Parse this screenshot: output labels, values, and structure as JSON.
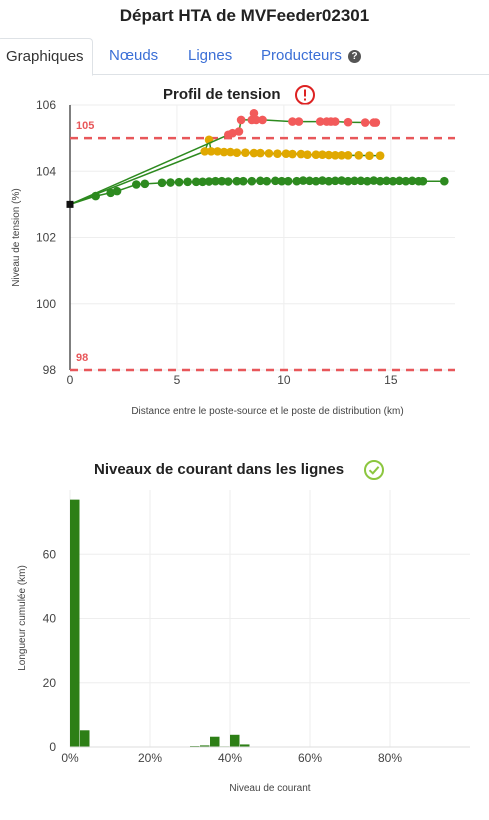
{
  "page": {
    "title": "Départ HTA de MVFeeder02301"
  },
  "tabs": [
    {
      "label": "Graphiques",
      "active": true
    },
    {
      "label": "Nœuds",
      "active": false
    },
    {
      "label": "Lignes",
      "active": false
    },
    {
      "label": "Producteurs",
      "active": false,
      "icon": "help-icon"
    }
  ],
  "voltage": {
    "title": "Profil de tension",
    "status_icon": "warning-circle-icon",
    "status_color": "#dd2222",
    "chart_data": {
      "type": "scatter",
      "xlabel": "Distance entre le poste-source et le poste de distribution (km)",
      "ylabel": "Niveau de tension (%)",
      "xlim": [
        0,
        18
      ],
      "ylim": [
        98,
        106
      ],
      "x_ticks": [
        0,
        5,
        10,
        15
      ],
      "y_ticks": [
        98,
        100,
        102,
        104,
        106
      ],
      "reference_lines": [
        {
          "value": 105,
          "label": "105",
          "color": "#e8575a"
        },
        {
          "value": 98,
          "label": "98",
          "color": "#e8575a"
        }
      ],
      "source_point": {
        "x": 0,
        "y": 103
      },
      "series": [
        {
          "color": "#2d8a1f",
          "points": [
            [
              1.2,
              103.25
            ],
            [
              1.9,
              103.35
            ],
            [
              2.2,
              103.4
            ],
            [
              3.1,
              103.6
            ],
            [
              3.5,
              103.62
            ],
            [
              4.3,
              103.65
            ],
            [
              4.7,
              103.66
            ],
            [
              5.1,
              103.67
            ],
            [
              5.5,
              103.68
            ],
            [
              5.9,
              103.68
            ],
            [
              6.2,
              103.68
            ],
            [
              6.5,
              103.69
            ],
            [
              6.8,
              103.7
            ],
            [
              7.1,
              103.7
            ],
            [
              7.4,
              103.69
            ],
            [
              7.8,
              103.7
            ],
            [
              8.1,
              103.7
            ],
            [
              8.5,
              103.7
            ],
            [
              8.9,
              103.71
            ],
            [
              9.2,
              103.7
            ],
            [
              9.6,
              103.71
            ],
            [
              9.9,
              103.7
            ],
            [
              10.2,
              103.7
            ],
            [
              10.6,
              103.7
            ],
            [
              10.9,
              103.72
            ],
            [
              11.2,
              103.71
            ],
            [
              11.5,
              103.7
            ],
            [
              11.8,
              103.72
            ],
            [
              12.1,
              103.7
            ],
            [
              12.4,
              103.71
            ],
            [
              12.7,
              103.72
            ],
            [
              13.0,
              103.7
            ],
            [
              13.3,
              103.71
            ],
            [
              13.6,
              103.71
            ],
            [
              13.9,
              103.7
            ],
            [
              14.2,
              103.72
            ],
            [
              14.5,
              103.7
            ],
            [
              14.8,
              103.71
            ],
            [
              15.1,
              103.7
            ],
            [
              15.4,
              103.71
            ],
            [
              15.7,
              103.7
            ],
            [
              16.0,
              103.71
            ],
            [
              16.3,
              103.7
            ],
            [
              16.5,
              103.7
            ],
            [
              17.5,
              103.7
            ]
          ]
        },
        {
          "color": "#e0a800",
          "points": [
            [
              6.3,
              104.6
            ],
            [
              6.6,
              104.6
            ],
            [
              6.9,
              104.6
            ],
            [
              7.2,
              104.58
            ],
            [
              7.5,
              104.58
            ],
            [
              7.8,
              104.56
            ],
            [
              8.2,
              104.56
            ],
            [
              8.6,
              104.55
            ],
            [
              8.9,
              104.55
            ],
            [
              9.3,
              104.54
            ],
            [
              9.7,
              104.53
            ],
            [
              10.1,
              104.53
            ],
            [
              10.4,
              104.52
            ],
            [
              10.8,
              104.52
            ],
            [
              11.1,
              104.5
            ],
            [
              11.5,
              104.5
            ],
            [
              11.8,
              104.5
            ],
            [
              12.1,
              104.49
            ],
            [
              12.4,
              104.48
            ],
            [
              12.7,
              104.48
            ],
            [
              13.0,
              104.48
            ],
            [
              13.5,
              104.48
            ],
            [
              14.0,
              104.47
            ],
            [
              14.5,
              104.47
            ],
            [
              6.5,
              104.95
            ]
          ]
        },
        {
          "color": "#f25a5a",
          "points": [
            [
              7.4,
              105.1
            ],
            [
              7.6,
              105.15
            ],
            [
              7.9,
              105.2
            ],
            [
              8.0,
              105.55
            ],
            [
              8.5,
              105.55
            ],
            [
              8.6,
              105.75
            ],
            [
              8.7,
              105.55
            ],
            [
              9.0,
              105.55
            ],
            [
              10.4,
              105.5
            ],
            [
              10.7,
              105.5
            ],
            [
              11.7,
              105.5
            ],
            [
              12.0,
              105.5
            ],
            [
              12.2,
              105.5
            ],
            [
              12.4,
              105.5
            ],
            [
              13.0,
              105.48
            ],
            [
              13.8,
              105.47
            ],
            [
              14.2,
              105.47
            ],
            [
              14.3,
              105.47
            ]
          ]
        }
      ]
    }
  },
  "current": {
    "title": "Niveaux de courant dans les lignes",
    "status_icon": "check-circle-icon",
    "status_color": "#8cc63f",
    "chart_data": {
      "type": "bar",
      "xlabel": "Niveau de courant",
      "ylabel": "Longueur cumulée (km)",
      "xlim": [
        0,
        100
      ],
      "ylim": [
        0,
        80
      ],
      "x_ticks": [
        "0%",
        "20%",
        "40%",
        "60%",
        "80%"
      ],
      "y_ticks": [
        0,
        20,
        40,
        60
      ],
      "bin_width": 2.5,
      "color": "#2d7f16",
      "bins": [
        {
          "start": 0,
          "value": 77
        },
        {
          "start": 2.5,
          "value": 5.2
        },
        {
          "start": 30,
          "value": 0.3
        },
        {
          "start": 32.5,
          "value": 0.5
        },
        {
          "start": 35,
          "value": 3.2
        },
        {
          "start": 37.5,
          "value": 0.2
        },
        {
          "start": 40,
          "value": 3.8
        },
        {
          "start": 42.5,
          "value": 0.8
        }
      ]
    }
  }
}
